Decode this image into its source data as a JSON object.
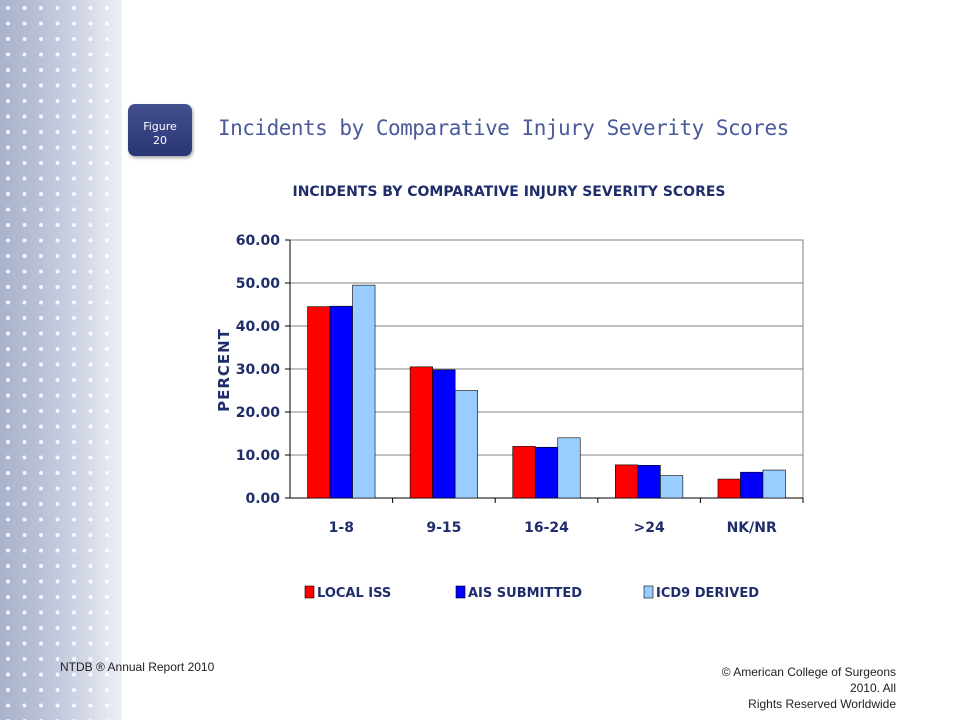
{
  "slide": {
    "figure_label": "Figure",
    "figure_number": "20",
    "title": "Incidents by Comparative Injury Severity Scores"
  },
  "footer": {
    "left": "NTDB ® Annual Report 2010",
    "right_line1": "© American College of Surgeons 2010.  All",
    "right_line2": "Rights Reserved Worldwide"
  },
  "colors": {
    "local_iss": "#ff0000",
    "ais_submitted": "#0000ff",
    "icd9_derived": "#99ccff",
    "label_navy": "#1f2d6b"
  },
  "chart_data": {
    "type": "bar",
    "title": "INCIDENTS BY COMPARATIVE INJURY SEVERITY SCORES",
    "xlabel": "",
    "ylabel": "PERCENT",
    "ylim": [
      0,
      60
    ],
    "yticks": [
      "0.00",
      "10.00",
      "20.00",
      "30.00",
      "40.00",
      "50.00",
      "60.00"
    ],
    "categories": [
      "1-8",
      "9-15",
      "16-24",
      ">24",
      "NK/NR"
    ],
    "series": [
      {
        "name": "LOCAL ISS",
        "color": "#ff0000",
        "values": [
          44.5,
          30.5,
          12.0,
          7.7,
          4.4
        ]
      },
      {
        "name": "AIS SUBMITTED",
        "color": "#0000ff",
        "values": [
          44.6,
          29.8,
          11.8,
          7.6,
          6.0
        ]
      },
      {
        "name": "ICD9 DERIVED",
        "color": "#99ccff",
        "values": [
          49.5,
          25.0,
          14.0,
          5.2,
          6.5
        ]
      }
    ],
    "grid": true,
    "legend": "bottom"
  }
}
